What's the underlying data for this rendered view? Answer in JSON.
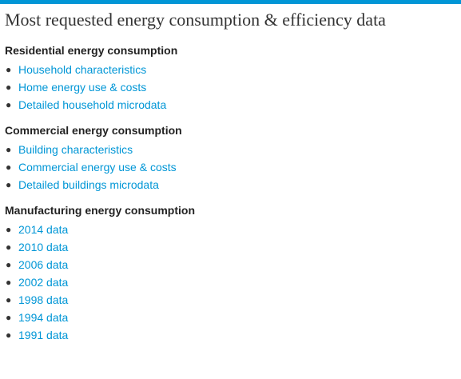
{
  "title": "Most requested energy consumption & efficiency data",
  "sections": [
    {
      "heading": "Residential energy consumption",
      "links": [
        "Household characteristics",
        "Home energy use & costs",
        "Detailed household microdata"
      ]
    },
    {
      "heading": "Commercial energy consumption",
      "links": [
        "Building characteristics",
        "Commercial energy use & costs",
        "Detailed buildings microdata"
      ]
    },
    {
      "heading": "Manufacturing energy consumption",
      "links": [
        "2014 data",
        "2010 data",
        "2006 data",
        "2002 data",
        "1998 data",
        "1994 data",
        "1991 data"
      ]
    }
  ],
  "colors": {
    "accent_bar": "#0096d6",
    "link": "#0096d6",
    "heading": "#222222",
    "title": "#333333"
  }
}
